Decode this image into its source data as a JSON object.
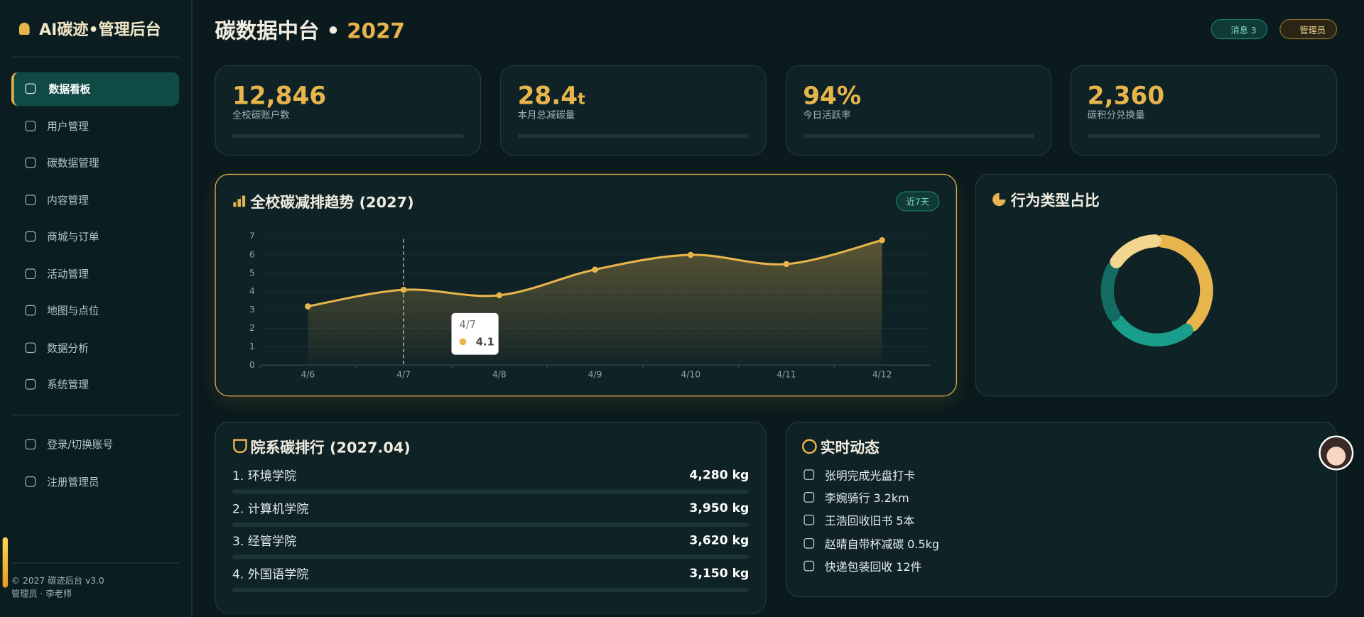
{
  "sidebar": {
    "brand": "AI碳迹•管理后台",
    "nav": [
      "数据看板",
      "用户管理",
      "碳数据管理",
      "内容管理",
      "商城与订单",
      "活动管理",
      "地图与点位",
      "数据分析",
      "系统管理"
    ],
    "account": [
      "登录/切换账号",
      "注册管理员"
    ],
    "footer": [
      "© 2027 碳迹后台 v3.0",
      "管理员 · 李老师"
    ]
  },
  "header": {
    "title": "碳数据中台 •",
    "year": "2027",
    "buttons": [
      "消息 3",
      "管理员"
    ]
  },
  "kpis": [
    {
      "value": "12,846",
      "label": "全校碳账户数"
    },
    {
      "value": "28.4",
      "unit": "t",
      "label": "本月总减碳量"
    },
    {
      "value": "94%",
      "label": "今日活跃率"
    },
    {
      "value": "2,360",
      "label": "碳积分兑换量"
    }
  ],
  "chart_data": [
    {
      "type": "line",
      "title": "全校碳减排趋势 (2027)",
      "badge": "近7天",
      "categories": [
        "4/6",
        "4/7",
        "4/8",
        "4/9",
        "4/10",
        "4/11",
        "4/12"
      ],
      "values": [
        3.2,
        4.1,
        3.8,
        5.2,
        6.0,
        5.5,
        6.8
      ],
      "color": "#e8b54d",
      "ylim": [
        0,
        7
      ],
      "yticks": [
        0,
        1,
        2,
        3,
        4,
        5,
        6,
        7
      ],
      "grid": true
    },
    {
      "type": "pie",
      "title": "行为类型占比",
      "values": [
        38,
        27,
        18,
        17
      ],
      "colors": [
        "#e8b54d",
        "#1a9e8c",
        "#146b62",
        "#f2d58f"
      ]
    }
  ],
  "ranking": {
    "title": "院系碳排行 (2027.04)",
    "rows": [
      {
        "name": "1. 环境学院",
        "value": "4,280 kg"
      },
      {
        "name": "2. 计算机学院",
        "value": "3,950 kg"
      },
      {
        "name": "3. 经管学院",
        "value": "3,620 kg"
      },
      {
        "name": "4. 外国语学院",
        "value": "3,150 kg"
      }
    ]
  },
  "feed": {
    "title": "实时动态",
    "items": [
      "张明完成光盘打卡",
      "李婉骑行 3.2km",
      "王浩回收旧书 5本",
      "赵晴自带杯减碳 0.5kg",
      "快递包装回收 12件"
    ]
  }
}
